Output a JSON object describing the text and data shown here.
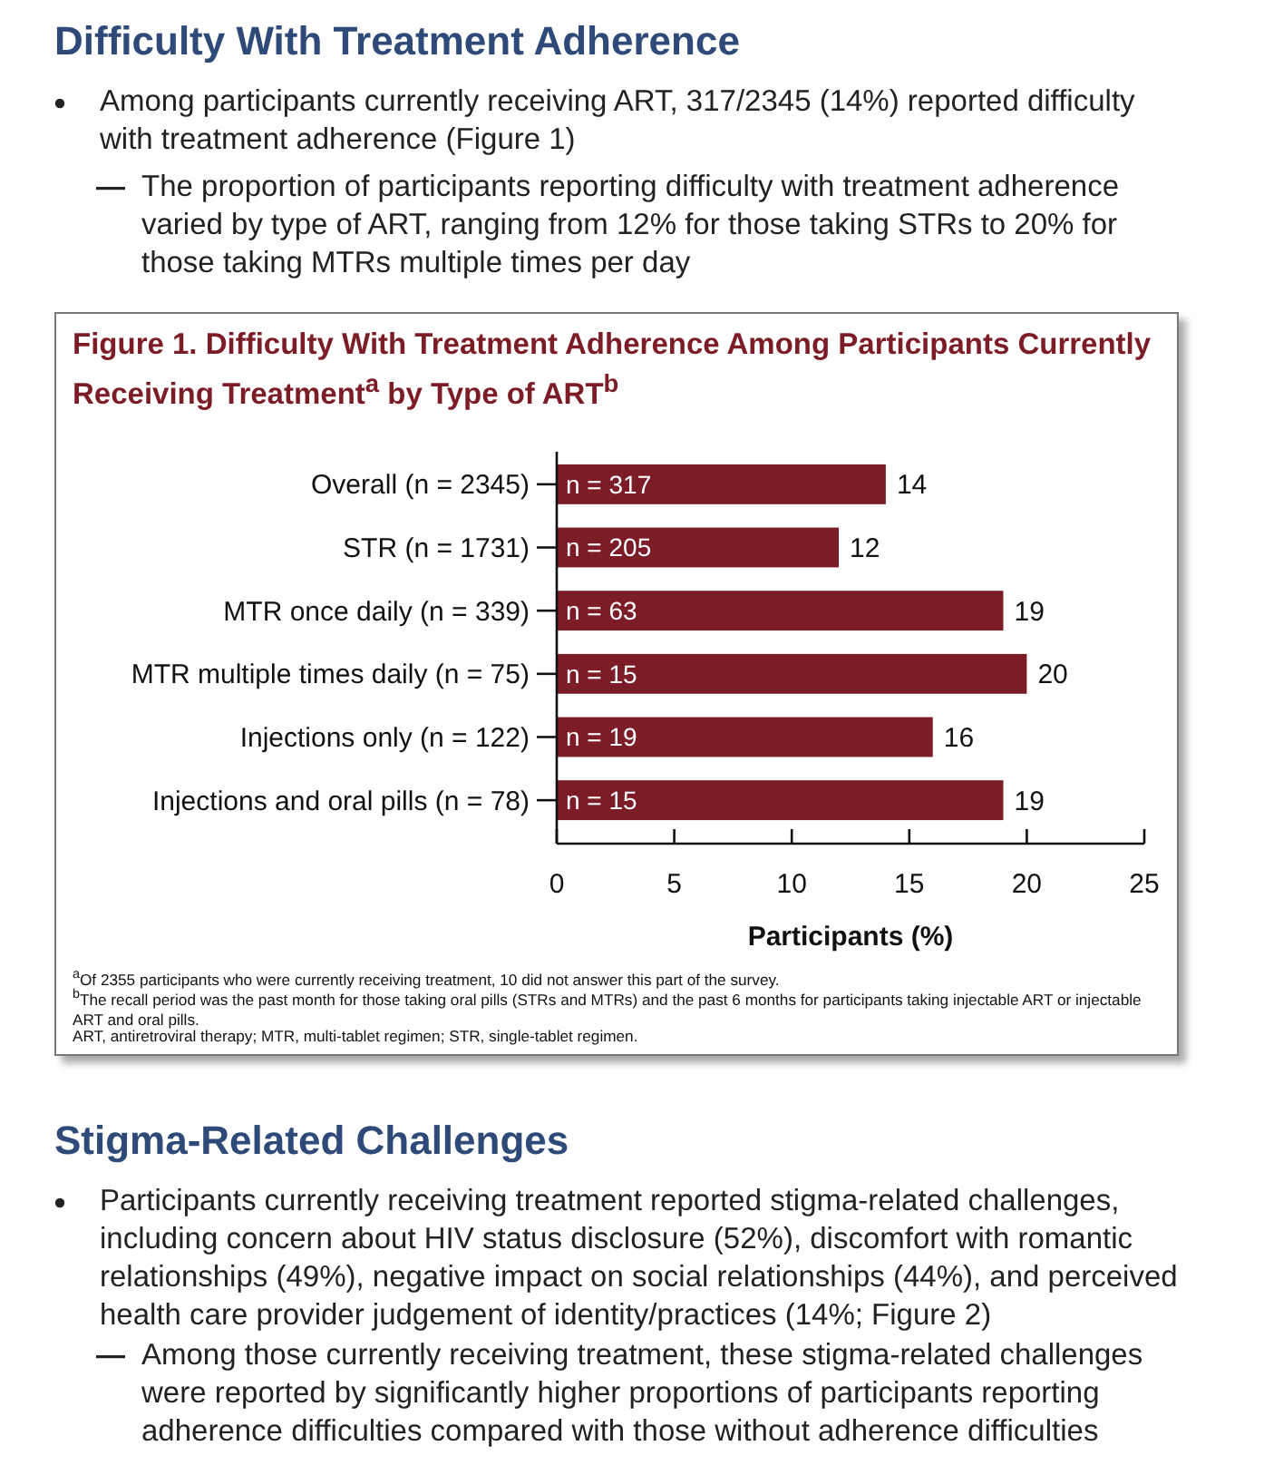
{
  "chart_data": {
    "type": "bar",
    "orientation": "horizontal",
    "title": "Figure 1. Difficulty With Treatment Adherence Among Participants Currently Receiving Treatment$^{a}$ by Type of ART$^{b}$",
    "xlabel": "Participants (%)",
    "categories": [
      "Overall (n = 2345)",
      "STR (n = 1731)",
      "MTR once daily (n = 339)",
      "MTR multiple times daily (n = 75)",
      "Injections only (n = 122)",
      "Injections and oral pills (n = 78)"
    ],
    "values": [
      14,
      12,
      19,
      20,
      16,
      19
    ],
    "color": "#7b1c26",
    "xlim": [
      0,
      25
    ],
    "xticks": [
      0,
      5,
      10,
      15,
      20,
      25
    ],
    "data_labels": true,
    "grid": false,
    "annotations": [
      "Difficulty With Treatment Adherence",
      "Among participants currently receiving ART, 317/2345 (14%) reported difficulty with treatment adherence (Figure 1)",
      "The proportion of participants reporting difficulty with treatment adherence varied by type of ART, ranging from 12% for those taking STRs to 20% for those taking MTRs multiple times per day",
      "$^{a}$Of 2355 participants who were currently receiving treatment, 10 did not answer this part of the survey.",
      "$^{b}$The recall period was the past month for those taking oral pills (STRs and MTRs) and the past 6 months for participants taking injectable ART or injectable ART and oral pills.",
      "ART, antiretroviral therapy; MTR, multi-tablet regimen; STR, single-tablet regimen.",
      "Stigma-Related Challenges",
      "Participants currently receiving treatment reported stigma-related challenges, including concern about HIV status disclosure (52%), discomfort with romantic relationships (49%), negative impact on social relationships (44%), and perceived health care provider judgement of identity/practices (14%; Figure 2)",
      "Among those currently receiving treatment, these stigma-related challenges were reported by significantly higher proportions of participants reporting adherence difficulties compared with those without adherence difficulties",
      "n = 317",
      "n = 205",
      "n = 63",
      "n = 15",
      "n = 19",
      "n = 15"
    ]
  }
}
